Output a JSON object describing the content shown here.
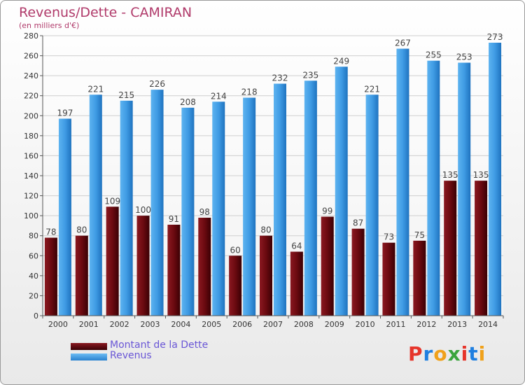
{
  "header": {
    "title": "Revenus/Dette - CAMIRAN",
    "subtitle": "(en milliers d'€)"
  },
  "legend": {
    "items": [
      {
        "label": "Montant de la Dette",
        "color": "#6b0a10"
      },
      {
        "label": "Revenus",
        "color": "#3f9be4"
      }
    ]
  },
  "logo": {
    "text": "Proxiti",
    "colors": [
      "#e6352b",
      "#1f7fe0",
      "#f0a11a",
      "#3aa43c",
      "#e6352b",
      "#1f7fe0",
      "#f0a11a"
    ]
  },
  "chart_data": {
    "type": "bar",
    "title": "Revenus/Dette - CAMIRAN",
    "subtitle": "(en milliers d'€)",
    "categories": [
      "2000",
      "2001",
      "2002",
      "2003",
      "2004",
      "2005",
      "2006",
      "2007",
      "2008",
      "2009",
      "2010",
      "2011",
      "2012",
      "2013",
      "2014"
    ],
    "series": [
      {
        "name": "Montant de la Dette",
        "color": "#6b0a10",
        "values": [
          78,
          80,
          109,
          100,
          91,
          98,
          60,
          80,
          64,
          99,
          87,
          73,
          75,
          135,
          135
        ]
      },
      {
        "name": "Revenus",
        "color": "#3f9be4",
        "values": [
          197,
          221,
          215,
          226,
          208,
          214,
          218,
          232,
          235,
          249,
          221,
          267,
          255,
          253,
          273
        ]
      }
    ],
    "ylim": [
      0,
      280
    ],
    "yticks": [
      0,
      20,
      40,
      60,
      80,
      100,
      120,
      140,
      160,
      180,
      200,
      220,
      240,
      260,
      280
    ],
    "grid": true,
    "legend_position": "bottom-left"
  }
}
